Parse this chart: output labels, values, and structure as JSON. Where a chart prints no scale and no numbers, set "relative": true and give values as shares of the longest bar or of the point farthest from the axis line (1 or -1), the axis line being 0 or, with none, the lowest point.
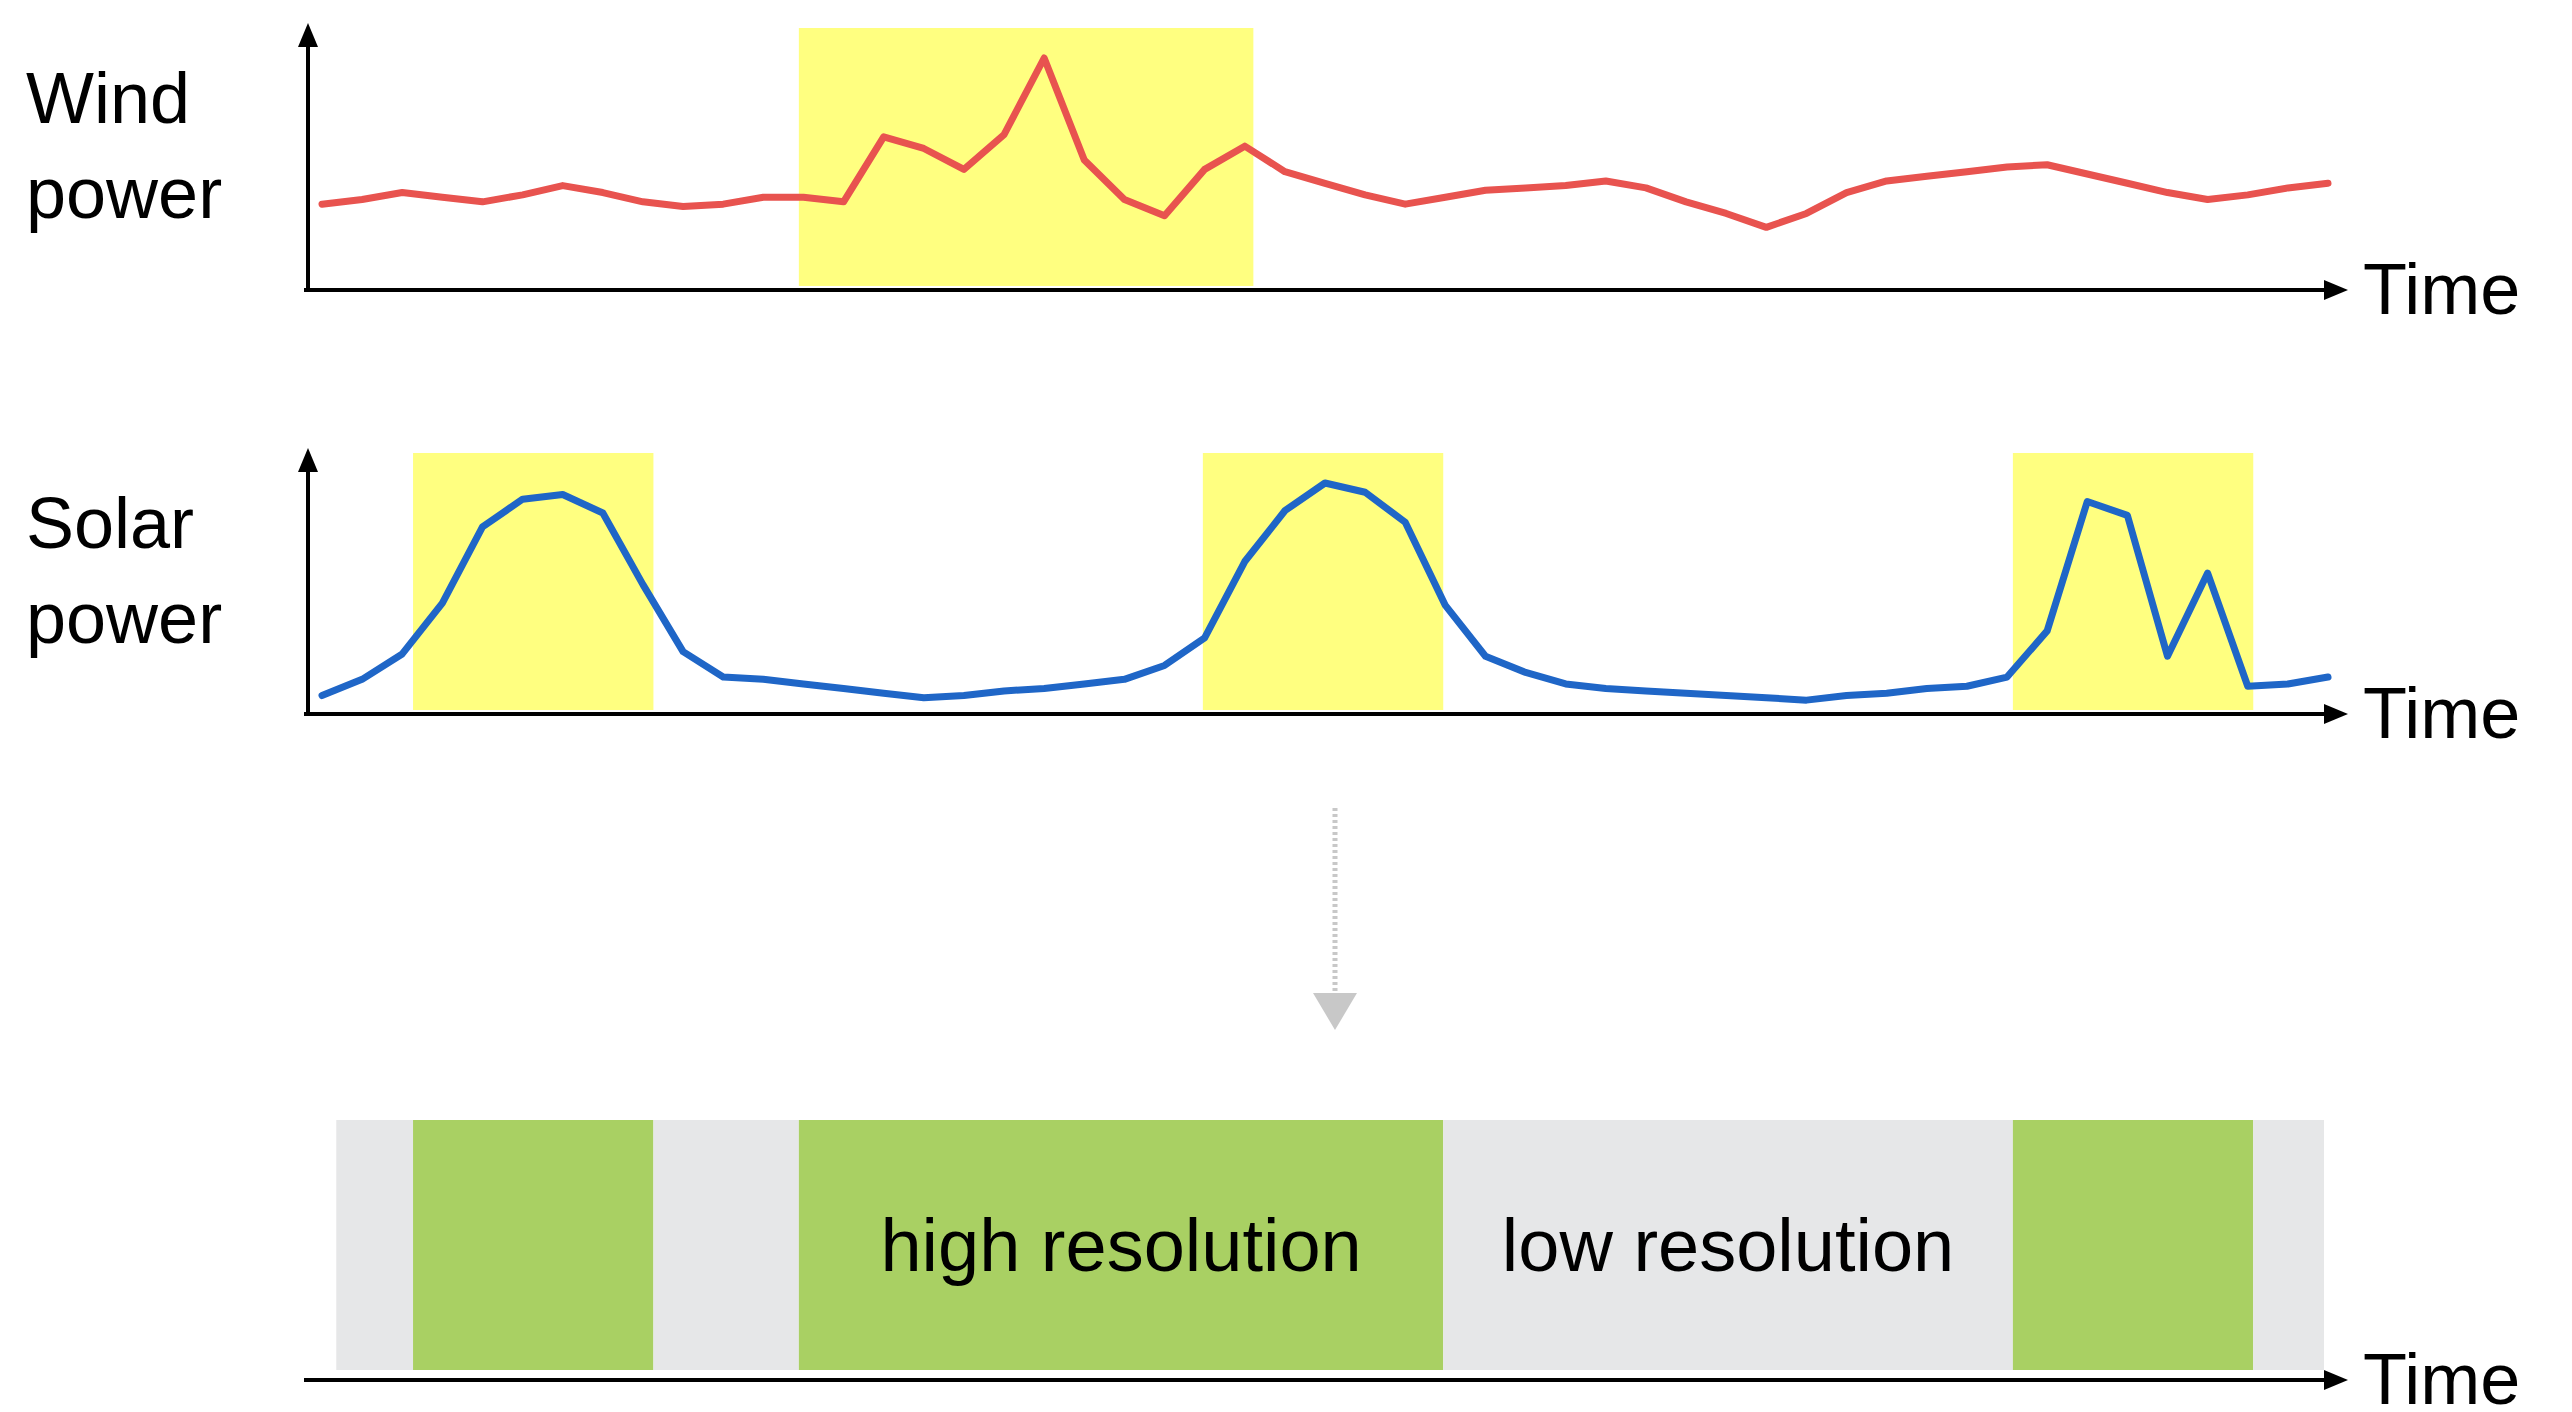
{
  "chart_data": [
    {
      "type": "line",
      "relative": true,
      "ylabel": "Wind power",
      "xlabel": "Time",
      "categories": [
        null,
        null,
        null,
        null,
        null,
        null,
        null,
        null,
        null,
        null,
        null,
        null,
        null,
        null,
        null,
        null,
        null,
        null,
        null,
        null,
        null,
        null,
        null,
        null,
        null,
        null,
        null,
        null,
        null,
        null,
        null,
        null,
        null,
        null,
        null,
        null,
        null,
        null,
        null,
        null,
        null,
        null,
        null,
        null,
        null,
        null,
        null,
        null,
        null,
        null,
        null
      ],
      "series": [
        {
          "color": "#e8534f",
          "values": [
            0.37,
            0.39,
            0.42,
            0.4,
            0.38,
            0.41,
            0.45,
            0.42,
            0.38,
            0.36,
            0.37,
            0.4,
            0.4,
            0.38,
            0.66,
            0.61,
            0.52,
            0.67,
            1,
            0.56,
            0.39,
            0.32,
            0.52,
            0.62,
            0.51,
            0.46,
            0.41,
            0.37,
            0.4,
            0.43,
            0.44,
            0.45,
            0.47,
            0.44,
            0.38,
            0.33,
            0.27,
            0.33,
            0.42,
            0.47,
            0.49,
            0.51,
            0.53,
            0.54,
            0.5,
            0.46,
            0.42,
            0.39,
            0.41,
            0.44,
            0.46
          ]
        }
      ]
    },
    {
      "type": "line",
      "relative": true,
      "ylabel": "Solar power",
      "xlabel": "Time",
      "categories": [
        null,
        null,
        null,
        null,
        null,
        null,
        null,
        null,
        null,
        null,
        null,
        null,
        null,
        null,
        null,
        null,
        null,
        null,
        null,
        null,
        null,
        null,
        null,
        null,
        null,
        null,
        null,
        null,
        null,
        null,
        null,
        null,
        null,
        null,
        null,
        null,
        null,
        null,
        null,
        null,
        null,
        null,
        null,
        null,
        null,
        null,
        null,
        null,
        null,
        null,
        null
      ],
      "series": [
        {
          "color": "#1f66c7",
          "values": [
            0.08,
            0.15,
            0.26,
            0.48,
            0.81,
            0.93,
            0.95,
            0.87,
            0.56,
            0.27,
            0.16,
            0.15,
            0.13,
            0.11,
            0.09,
            0.07,
            0.08,
            0.1,
            0.11,
            0.13,
            0.15,
            0.21,
            0.33,
            0.66,
            0.88,
            1,
            0.96,
            0.83,
            0.47,
            0.25,
            0.18,
            0.13,
            0.11,
            0.1,
            0.09,
            0.08,
            0.07,
            0.06,
            0.08,
            0.09,
            0.11,
            0.12,
            0.16,
            0.36,
            0.92,
            0.86,
            0.25,
            0.61,
            0.12,
            0.13,
            0.16
          ]
        }
      ]
    },
    {
      "type": "other",
      "xlabel": "Time",
      "annotations": [
        "high resolution",
        "low resolution"
      ]
    }
  ]
}
